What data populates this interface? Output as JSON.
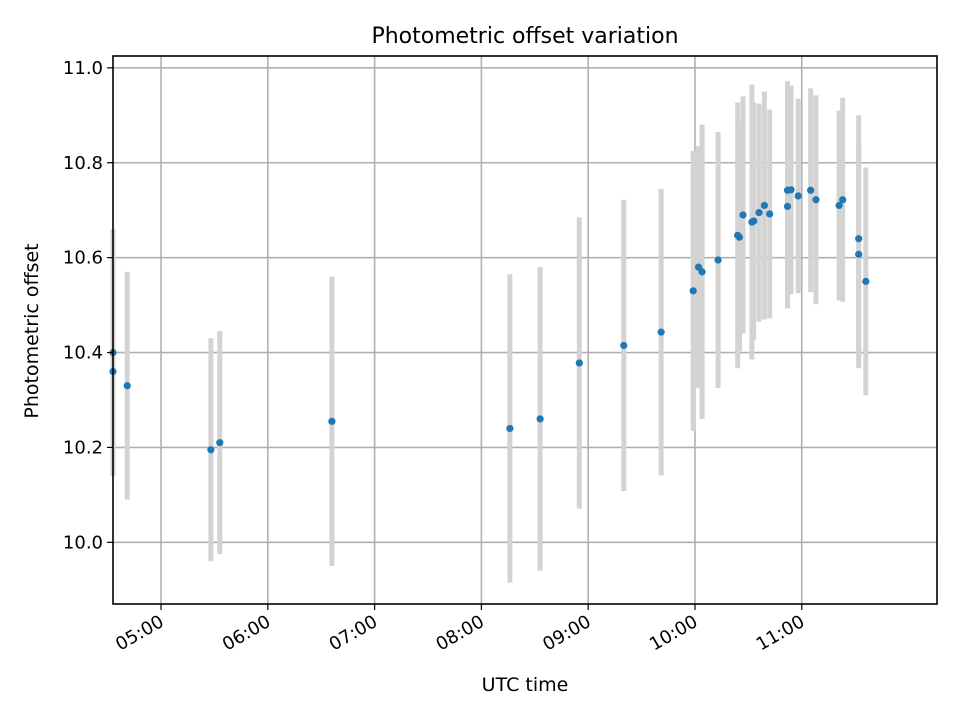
{
  "chart_data": {
    "type": "scatter",
    "title": "Photometric offset variation",
    "xlabel": "UTC time",
    "ylabel": "Photometric offset",
    "x_ticks": [
      "05:00",
      "06:00",
      "07:00",
      "08:00",
      "09:00",
      "10:00",
      "11:00"
    ],
    "y_ticks": [
      "10.0",
      "10.2",
      "10.4",
      "10.6",
      "10.8",
      "11.0"
    ],
    "xlim": [
      "04:33",
      "12:16"
    ],
    "ylim": [
      9.87,
      11.025
    ],
    "grid": true,
    "marker_color": "#1f77b4",
    "errorbar_color": "#d3d3d3",
    "series": [
      {
        "points": [
          {
            "x": "04:33",
            "y": 10.36,
            "err": 0.22
          },
          {
            "x": "04:33",
            "y": 10.4,
            "err": 0.26
          },
          {
            "x": "04:41",
            "y": 10.33,
            "err": 0.24
          },
          {
            "x": "05:28",
            "y": 10.195,
            "err": 0.235
          },
          {
            "x": "05:33",
            "y": 10.21,
            "err": 0.235
          },
          {
            "x": "06:36",
            "y": 10.255,
            "err": 0.305
          },
          {
            "x": "08:16",
            "y": 10.24,
            "err": 0.325
          },
          {
            "x": "08:33",
            "y": 10.26,
            "err": 0.32
          },
          {
            "x": "08:55",
            "y": 10.378,
            "err": 0.307
          },
          {
            "x": "09:20",
            "y": 10.415,
            "err": 0.307
          },
          {
            "x": "09:41",
            "y": 10.443,
            "err": 0.302
          },
          {
            "x": "09:59",
            "y": 10.53,
            "err": 0.295
          },
          {
            "x": "10:02",
            "y": 10.58,
            "err": 0.255
          },
          {
            "x": "10:04",
            "y": 10.57,
            "err": 0.31
          },
          {
            "x": "10:13",
            "y": 10.595,
            "err": 0.27
          },
          {
            "x": "10:24",
            "y": 10.647,
            "err": 0.28
          },
          {
            "x": "10:25",
            "y": 10.643,
            "err": 0.24
          },
          {
            "x": "10:27",
            "y": 10.69,
            "err": 0.25
          },
          {
            "x": "10:32",
            "y": 10.675,
            "err": 0.29
          },
          {
            "x": "10:33",
            "y": 10.677,
            "err": 0.25
          },
          {
            "x": "10:36",
            "y": 10.695,
            "err": 0.23
          },
          {
            "x": "10:39",
            "y": 10.71,
            "err": 0.24
          },
          {
            "x": "10:42",
            "y": 10.692,
            "err": 0.22
          },
          {
            "x": "10:52",
            "y": 10.708,
            "err": 0.215
          },
          {
            "x": "10:52",
            "y": 10.742,
            "err": 0.23
          },
          {
            "x": "10:54",
            "y": 10.743,
            "err": 0.22
          },
          {
            "x": "10:58",
            "y": 10.73,
            "err": 0.205
          },
          {
            "x": "11:05",
            "y": 10.742,
            "err": 0.215
          },
          {
            "x": "11:08",
            "y": 10.722,
            "err": 0.22
          },
          {
            "x": "11:21",
            "y": 10.71,
            "err": 0.2
          },
          {
            "x": "11:23",
            "y": 10.722,
            "err": 0.215
          },
          {
            "x": "11:32",
            "y": 10.64,
            "err": 0.26
          },
          {
            "x": "11:32",
            "y": 10.607,
            "err": 0.24
          },
          {
            "x": "11:36",
            "y": 10.55,
            "err": 0.24
          }
        ]
      }
    ]
  }
}
